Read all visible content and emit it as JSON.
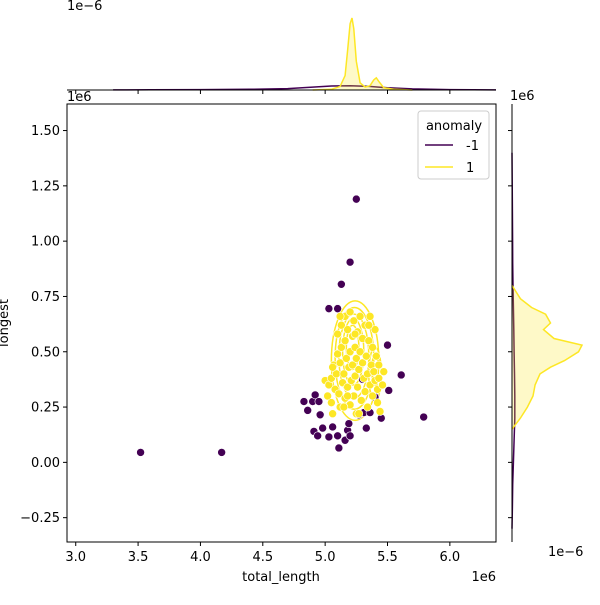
{
  "chart_data": {
    "type": "scatter",
    "xlabel": "total_length",
    "ylabel": "longest",
    "x_offset_label": "1e6",
    "y_offset_label": "1e6",
    "top_marginal_offset_label": "1e−6",
    "right_marginal_x_offset_label": "1e6",
    "right_marginal_count_offset_label": "1e−6",
    "xlim": [
      2.93,
      6.37
    ],
    "ylim": [
      -0.36,
      1.62
    ],
    "x_ticks": [
      {
        "v": 3.0,
        "label": "3.0"
      },
      {
        "v": 3.5,
        "label": "3.5"
      },
      {
        "v": 4.0,
        "label": "4.0"
      },
      {
        "v": 4.5,
        "label": "4.5"
      },
      {
        "v": 5.0,
        "label": "5.0"
      },
      {
        "v": 5.5,
        "label": "5.5"
      },
      {
        "v": 6.0,
        "label": "6.0"
      }
    ],
    "y_ticks": [
      {
        "v": -0.25,
        "label": "−0.25"
      },
      {
        "v": 0.0,
        "label": "0.00"
      },
      {
        "v": 0.25,
        "label": "0.25"
      },
      {
        "v": 0.5,
        "label": "0.50"
      },
      {
        "v": 0.75,
        "label": "0.75"
      },
      {
        "v": 1.0,
        "label": "1.00"
      },
      {
        "v": 1.25,
        "label": "1.25"
      },
      {
        "v": 1.5,
        "label": "1.50"
      }
    ],
    "legend": {
      "title": "anomaly",
      "position": "top-right",
      "entries": [
        {
          "label": "-1",
          "color": "#440154"
        },
        {
          "label": "1",
          "color": "#fde725"
        }
      ]
    },
    "series": [
      {
        "name": "-1",
        "color": "#440154",
        "points": [
          [
            3.52,
            0.045
          ],
          [
            4.17,
            0.045
          ],
          [
            5.79,
            0.205
          ],
          [
            5.25,
            1.19
          ],
          [
            5.2,
            0.905
          ],
          [
            5.13,
            0.805
          ],
          [
            5.03,
            0.695
          ],
          [
            5.1,
            0.695
          ],
          [
            5.61,
            0.395
          ],
          [
            5.5,
            0.53
          ],
          [
            5.51,
            0.325
          ],
          [
            4.83,
            0.275
          ],
          [
            4.86,
            0.235
          ],
          [
            4.9,
            0.275
          ],
          [
            4.92,
            0.305
          ],
          [
            4.95,
            0.275
          ],
          [
            4.96,
            0.215
          ],
          [
            4.91,
            0.14
          ],
          [
            4.94,
            0.12
          ],
          [
            4.98,
            0.155
          ],
          [
            5.03,
            0.115
          ],
          [
            5.06,
            0.16
          ],
          [
            5.1,
            0.12
          ],
          [
            5.11,
            0.065
          ],
          [
            5.16,
            0.1
          ],
          [
            5.18,
            0.145
          ],
          [
            5.19,
            0.175
          ],
          [
            5.2,
            0.12
          ],
          [
            5.27,
            0.215
          ],
          [
            5.31,
            0.225
          ],
          [
            5.33,
            0.155
          ],
          [
            5.36,
            0.225
          ],
          [
            5.3,
            0.375
          ],
          [
            5.4,
            0.295
          ],
          [
            5.45,
            0.2
          ]
        ]
      },
      {
        "name": "1",
        "color": "#fde725",
        "points": [
          [
            5.0,
            0.37
          ],
          [
            5.02,
            0.3
          ],
          [
            5.03,
            0.35
          ],
          [
            5.05,
            0.38
          ],
          [
            5.05,
            0.27
          ],
          [
            5.06,
            0.22
          ],
          [
            5.07,
            0.44
          ],
          [
            5.08,
            0.33
          ],
          [
            5.09,
            0.4
          ],
          [
            5.1,
            0.49
          ],
          [
            5.1,
            0.58
          ],
          [
            5.11,
            0.31
          ],
          [
            5.12,
            0.25
          ],
          [
            5.12,
            0.45
          ],
          [
            5.13,
            0.52
          ],
          [
            5.13,
            0.62
          ],
          [
            5.14,
            0.36
          ],
          [
            5.15,
            0.4
          ],
          [
            5.16,
            0.66
          ],
          [
            5.16,
            0.55
          ],
          [
            5.16,
            0.29
          ],
          [
            5.17,
            0.47
          ],
          [
            5.18,
            0.34
          ],
          [
            5.18,
            0.6
          ],
          [
            5.19,
            0.43
          ],
          [
            5.2,
            0.68
          ],
          [
            5.2,
            0.5
          ],
          [
            5.2,
            0.26
          ],
          [
            5.21,
            0.37
          ],
          [
            5.22,
            0.57
          ],
          [
            5.22,
            0.44
          ],
          [
            5.23,
            0.3
          ],
          [
            5.23,
            0.64
          ],
          [
            5.24,
            0.52
          ],
          [
            5.24,
            0.39
          ],
          [
            5.25,
            0.47
          ],
          [
            5.25,
            0.22
          ],
          [
            5.26,
            0.59
          ],
          [
            5.26,
            0.34
          ],
          [
            5.27,
            0.42
          ],
          [
            5.28,
            0.66
          ],
          [
            5.28,
            0.5
          ],
          [
            5.29,
            0.28
          ],
          [
            5.3,
            0.45
          ],
          [
            5.3,
            0.56
          ],
          [
            5.31,
            0.38
          ],
          [
            5.32,
            0.62
          ],
          [
            5.32,
            0.32
          ],
          [
            5.33,
            0.48
          ],
          [
            5.34,
            0.4
          ],
          [
            5.34,
            0.25
          ],
          [
            5.35,
            0.55
          ],
          [
            5.36,
            0.66
          ],
          [
            5.36,
            0.35
          ],
          [
            5.37,
            0.44
          ],
          [
            5.38,
            0.3
          ],
          [
            5.38,
            0.52
          ],
          [
            5.39,
            0.41
          ],
          [
            5.4,
            0.6
          ],
          [
            5.4,
            0.37
          ],
          [
            5.41,
            0.48
          ],
          [
            5.42,
            0.27
          ],
          [
            5.42,
            0.33
          ],
          [
            5.43,
            0.44
          ],
          [
            5.43,
            0.38
          ],
          [
            5.44,
            0.23
          ],
          [
            5.46,
            0.35
          ],
          [
            5.47,
            0.41
          ],
          [
            5.15,
            0.25
          ],
          [
            5.27,
            0.22
          ],
          [
            5.12,
            0.66
          ],
          [
            5.24,
            0.58
          ],
          [
            5.35,
            0.62
          ],
          [
            5.18,
            0.3
          ],
          [
            5.06,
            0.43
          ]
        ]
      }
    ],
    "top_marginal": {
      "series": [
        {
          "name": "-1",
          "color": "#440154",
          "x": [
            3.3,
            3.6,
            4.0,
            4.4,
            4.7,
            4.9,
            5.05,
            5.2,
            5.35,
            5.5,
            5.7,
            6.0,
            6.37
          ],
          "density": [
            0.002,
            0.004,
            0.006,
            0.01,
            0.02,
            0.04,
            0.055,
            0.06,
            0.05,
            0.03,
            0.015,
            0.005,
            0.002
          ]
        },
        {
          "name": "1",
          "color": "#fde725",
          "x": [
            4.9,
            5.05,
            5.12,
            5.16,
            5.18,
            5.2,
            5.215,
            5.23,
            5.25,
            5.28,
            5.32,
            5.36,
            5.39,
            5.41,
            5.43,
            5.47,
            5.55,
            5.7
          ],
          "density": [
            0.0,
            0.01,
            0.05,
            0.2,
            0.55,
            0.92,
            1.0,
            0.85,
            0.4,
            0.1,
            0.04,
            0.06,
            0.14,
            0.17,
            0.12,
            0.03,
            0.01,
            0.0
          ]
        }
      ]
    },
    "right_marginal": {
      "series": [
        {
          "name": "-1",
          "color": "#440154",
          "y": [
            -0.3,
            -0.2,
            -0.1,
            0.0,
            0.1,
            0.2,
            0.3,
            0.4,
            0.5,
            0.6,
            0.7,
            0.8,
            0.9,
            1.0,
            1.2,
            1.4
          ],
          "density": [
            0.0,
            0.005,
            0.01,
            0.02,
            0.03,
            0.04,
            0.04,
            0.035,
            0.03,
            0.025,
            0.02,
            0.015,
            0.01,
            0.008,
            0.004,
            0.0
          ]
        },
        {
          "name": "1",
          "color": "#fde725",
          "y": [
            0.15,
            0.2,
            0.25,
            0.3,
            0.35,
            0.4,
            0.43,
            0.46,
            0.5,
            0.53,
            0.56,
            0.6,
            0.63,
            0.67,
            0.7,
            0.74,
            0.8
          ],
          "density": [
            0.0,
            0.12,
            0.22,
            0.3,
            0.33,
            0.4,
            0.55,
            0.75,
            0.95,
            1.0,
            0.6,
            0.45,
            0.55,
            0.48,
            0.28,
            0.12,
            0.0
          ]
        }
      ]
    }
  }
}
